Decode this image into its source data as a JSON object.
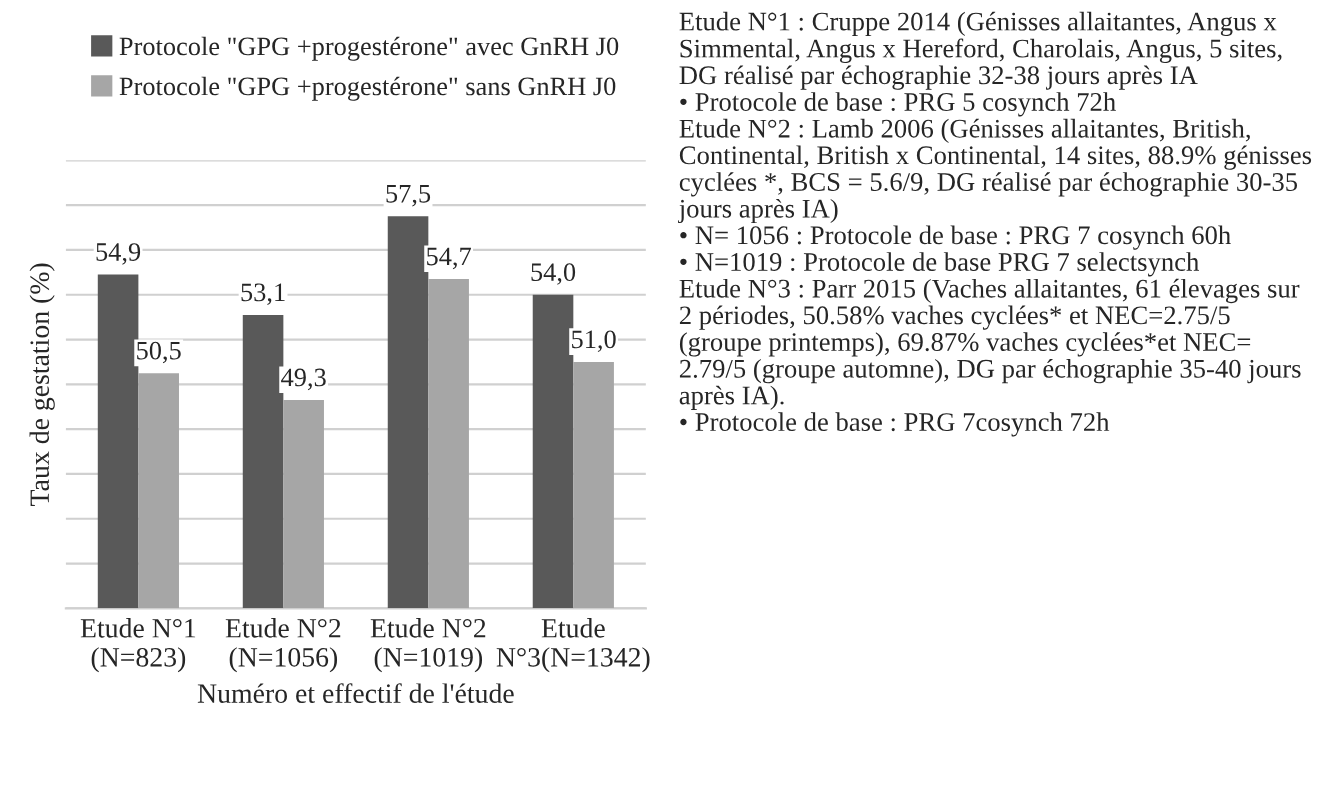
{
  "chart_data": {
    "type": "bar",
    "xlabel": "Numéro et effectif de l'étude",
    "ylabel": "Taux de gestation (%)",
    "categories": [
      "Etude N°1\n(N=823)",
      "Etude N°2\n(N=1056)",
      "Etude N°2\n(N=1019)",
      "Etude\nN°3(N=1342)"
    ],
    "series": [
      {
        "name": "Protocole \"GPG +progestérone\" avec GnRH J0",
        "color": "#595959",
        "values": [
          54.9,
          53.1,
          57.5,
          54.0
        ],
        "value_labels": [
          "54,9",
          "53,1",
          "57,5",
          "54,0"
        ]
      },
      {
        "name": "Protocole \"GPG +progestérone\" sans GnRH J0",
        "color": "#a6a6a6",
        "values": [
          50.5,
          49.3,
          54.7,
          51.0
        ],
        "value_labels": [
          "50,5",
          "49,3",
          "54,7",
          "51,0"
        ]
      }
    ],
    "ylim": [
      40,
      60
    ],
    "yticks": [
      {
        "value": 40,
        "label": null
      },
      {
        "value": 42,
        "label": null
      },
      {
        "value": 44,
        "label": null
      },
      {
        "value": 46,
        "label": null
      },
      {
        "value": 48,
        "label": null
      },
      {
        "value": 50,
        "label": null
      },
      {
        "value": 52,
        "label": null
      },
      {
        "value": 54,
        "label": null
      },
      {
        "value": 56,
        "label": null
      },
      {
        "value": 58,
        "label": null
      },
      {
        "value": 60,
        "label": null
      }
    ],
    "tick_labels": "x",
    "grid": "y",
    "legend": "top",
    "annotations": [
      "Etude N°1 : Cruppe 2014 (Génisses allaitantes, Angus x Simmental, Angus x Hereford, Charolais, Angus, 5 sites, DG réalisé par échographie 32-38 jours après IA",
      "• Protocole de base : PRG 5 cosynch 72h",
      "Etude N°2 : Lamb 2006 (Génisses allaitantes, British, Continental, British x Continental, 14 sites, 88.9% génisses cyclées *, BCS = 5.6/9, DG réalisé par échographie 30-35 jours après IA)",
      "• N= 1056 : Protocole de base : PRG 7 cosynch 60h",
      "• N=1019 : Protocole de base PRG 7 selectsynch",
      "Etude N°3 : Parr 2015 (Vaches allaitantes, 61 élevages sur 2 périodes, 50.58% vaches cyclées* et NEC=2.75/5 (groupe printemps), 69.87% vaches cyclées*et NEC= 2.79/5 (groupe automne), DG par échographie 35-40 jours après IA).",
      "• Protocole de base : PRG 7cosynch 72h"
    ]
  }
}
